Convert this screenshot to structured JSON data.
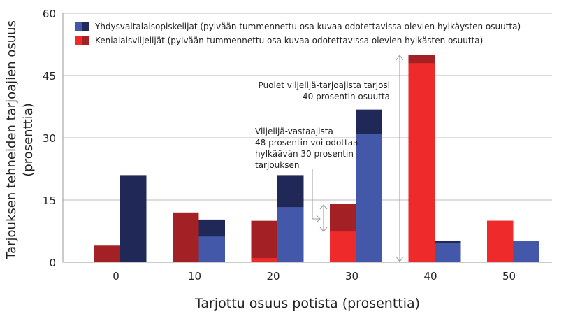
{
  "chart_data": {
    "type": "bar",
    "xlabel": "Tarjottu osuus potista (prosenttia)",
    "ylabel": [
      "Tarjouksen tehneiden tarjoajien osuus",
      "(prosenttia)"
    ],
    "ylim": [
      0,
      60
    ],
    "yticks": [
      0,
      15,
      30,
      45,
      60
    ],
    "categories": [
      "0",
      "10",
      "20",
      "30",
      "40",
      "50"
    ],
    "grid": true,
    "legend_position": "top-left",
    "series": [
      {
        "name": "Kenialaisviljelijät (pylvään tummennettu osa kuvaa odotettavissa olevien hylkästen osuutta)",
        "total": [
          4,
          12,
          10,
          14,
          50,
          10
        ],
        "accepted": [
          0,
          0,
          1,
          7.4,
          48,
          10
        ],
        "color_light": "#ee2a2a",
        "color_dark": "#a32124"
      },
      {
        "name": "Yhdysvaltalaisopiskelijat (pylvään tummennettu osa kuvaa odotettavissa olevien hylkäysten osuutta)",
        "total": [
          21,
          10.3,
          21,
          36.8,
          5.2,
          5.2
        ],
        "accepted": [
          0,
          6.2,
          13.3,
          31,
          4.7,
          5.2
        ],
        "color_light": "#4358a8",
        "color_dark": "#1f2857"
      }
    ],
    "annotations": [
      {
        "lines": [
          "Puolet viljelijä-tarjoajista tarjosi",
          "40 prosentin osuutta"
        ]
      },
      {
        "lines": [
          "Viljelijä-vastaajista",
          "48 prosentin voi odottaa",
          "hylkäävän 30 prosentin",
          "tarjouksen"
        ]
      }
    ]
  }
}
